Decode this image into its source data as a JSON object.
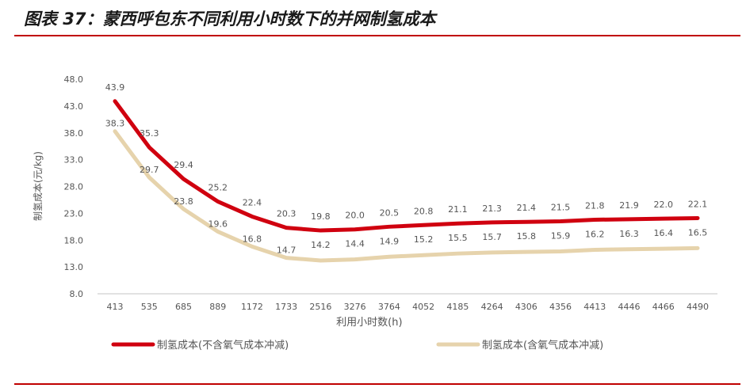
{
  "title": "图表 37：蒙西呼包东不同利用小时数下的并网制氢成本",
  "chart_data": {
    "type": "line",
    "xlabel": "利用小时数(h)",
    "ylabel": "制氢成本(元/kg)",
    "categories": [
      "413",
      "535",
      "685",
      "889",
      "1172",
      "1733",
      "2516",
      "3276",
      "3764",
      "4052",
      "4185",
      "4264",
      "4306",
      "4356",
      "4413",
      "4446",
      "4466",
      "4490"
    ],
    "ylim": [
      8.0,
      48.0
    ],
    "yticks": [
      "8.0",
      "13.0",
      "18.0",
      "23.0",
      "28.0",
      "33.0",
      "38.0",
      "43.0",
      "48.0"
    ],
    "grid": false,
    "legend_position": "bottom",
    "series": [
      {
        "name": "制氢成本(不含氧气成本冲减)",
        "color": "#d0000f",
        "values": [
          43.9,
          35.3,
          29.4,
          25.2,
          22.4,
          20.3,
          19.8,
          20.0,
          20.5,
          20.8,
          21.1,
          21.3,
          21.4,
          21.5,
          21.8,
          21.9,
          22.0,
          22.1
        ]
      },
      {
        "name": "制氢成本(含氧气成本冲减)",
        "color": "#e6d3ac",
        "values": [
          38.3,
          29.7,
          23.8,
          19.6,
          16.8,
          14.7,
          14.2,
          14.4,
          14.9,
          15.2,
          15.5,
          15.7,
          15.8,
          15.9,
          16.2,
          16.3,
          16.4,
          16.5
        ]
      }
    ]
  }
}
